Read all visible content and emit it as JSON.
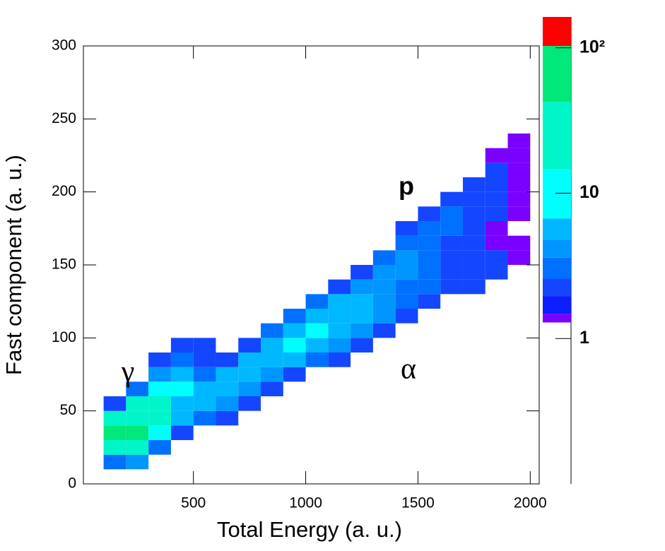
{
  "chart_data": {
    "type": "heatmap",
    "xlabel": "Total Energy (a. u.)",
    "ylabel": "Fast component (a. u.)",
    "annotations": [
      "γ",
      "p",
      "α"
    ],
    "xlim": [
      10,
      2040
    ],
    "ylim": [
      0,
      300
    ],
    "xticks": [
      500,
      1000,
      1500,
      2000
    ],
    "yticks": [
      0,
      50,
      100,
      150,
      200,
      250,
      300
    ],
    "zlim": [
      0.1,
      163
    ],
    "zlog": true,
    "zticks": [
      1,
      10,
      {
        "value": 100,
        "label": "10²"
      }
    ],
    "zlevels": [
      1.29,
      1.48,
      1.96,
      2.58,
      3.6,
      4.78,
      6.7,
      14.6,
      42.4,
      103,
      163
    ],
    "zcolors": [
      "#7a00ff",
      "#0a1eff",
      "#1446ff",
      "#0070ff",
      "#0096ff",
      "#00b8ff",
      "#00ffff",
      "#00f5c8",
      "#00e87a",
      "#ff0000"
    ],
    "xbins": [
      100,
      200,
      300,
      400,
      500,
      600,
      700,
      800,
      900,
      1000,
      1100,
      1200,
      1300,
      1400,
      1500,
      1600,
      1700,
      1800,
      1900,
      2000
    ],
    "ybins": [
      10,
      20,
      30,
      40,
      50,
      60,
      70,
      80,
      90,
      100,
      110,
      120,
      130,
      140,
      150,
      160,
      170,
      180,
      190,
      200,
      210,
      220,
      230,
      240
    ],
    "values": [
      [
        3,
        4,
        null,
        null,
        null,
        null,
        null,
        null,
        null,
        null,
        null,
        null,
        null,
        null,
        null,
        null,
        null,
        null,
        null
      ],
      [
        40,
        20,
        3,
        null,
        null,
        null,
        null,
        null,
        null,
        null,
        null,
        null,
        null,
        null,
        null,
        null,
        null,
        null,
        null
      ],
      [
        60,
        50,
        8,
        2,
        null,
        null,
        null,
        null,
        null,
        null,
        null,
        null,
        null,
        null,
        null,
        null,
        null,
        null,
        null
      ],
      [
        15,
        40,
        20,
        5,
        3,
        2,
        null,
        null,
        null,
        null,
        null,
        null,
        null,
        null,
        null,
        null,
        null,
        null,
        null
      ],
      [
        2,
        15,
        25,
        6,
        5,
        4,
        2,
        null,
        null,
        null,
        null,
        null,
        null,
        null,
        null,
        null,
        null,
        null,
        null
      ],
      [
        null,
        3,
        10,
        8,
        6,
        6,
        4,
        2,
        null,
        null,
        null,
        null,
        null,
        null,
        null,
        null,
        null,
        null,
        null
      ],
      [
        null,
        null,
        4,
        5,
        3,
        5,
        6,
        4,
        2,
        null,
        null,
        null,
        null,
        null,
        null,
        null,
        null,
        null,
        null
      ],
      [
        null,
        null,
        2,
        3,
        2,
        2,
        5,
        6,
        5,
        3,
        2,
        null,
        null,
        null,
        null,
        null,
        null,
        null,
        null
      ],
      [
        null,
        null,
        null,
        2,
        2,
        null,
        2,
        5,
        7,
        6,
        4,
        2,
        null,
        null,
        null,
        null,
        null,
        null,
        null
      ],
      [
        null,
        null,
        null,
        null,
        null,
        null,
        null,
        3,
        6,
        7,
        5,
        4,
        2,
        null,
        null,
        null,
        null,
        null,
        null
      ],
      [
        null,
        null,
        null,
        null,
        null,
        null,
        null,
        null,
        3,
        6,
        6,
        5,
        4,
        2,
        null,
        null,
        null,
        null,
        null
      ],
      [
        null,
        null,
        null,
        null,
        null,
        null,
        null,
        null,
        null,
        3,
        5,
        5,
        4,
        3,
        2,
        null,
        null,
        null,
        null
      ],
      [
        null,
        null,
        null,
        null,
        null,
        null,
        null,
        null,
        null,
        null,
        2,
        4,
        4,
        3,
        3,
        2,
        2,
        null,
        null
      ],
      [
        null,
        null,
        null,
        null,
        null,
        null,
        null,
        null,
        null,
        null,
        null,
        2,
        4,
        4,
        3,
        2,
        2,
        2,
        null
      ],
      [
        null,
        null,
        null,
        null,
        null,
        null,
        null,
        null,
        null,
        null,
        null,
        null,
        3,
        4,
        3,
        2,
        2,
        2,
        1
      ],
      [
        null,
        null,
        null,
        null,
        null,
        null,
        null,
        null,
        null,
        null,
        null,
        null,
        null,
        3,
        3,
        2,
        2,
        1,
        1
      ],
      [
        null,
        null,
        null,
        null,
        null,
        null,
        null,
        null,
        null,
        null,
        null,
        null,
        null,
        2,
        3,
        3,
        2,
        1,
        null
      ],
      [
        null,
        null,
        null,
        null,
        null,
        null,
        null,
        null,
        null,
        null,
        null,
        null,
        null,
        null,
        2,
        3,
        2,
        2,
        1
      ],
      [
        null,
        null,
        null,
        null,
        null,
        null,
        null,
        null,
        null,
        null,
        null,
        null,
        null,
        null,
        null,
        2,
        2,
        2,
        1
      ],
      [
        null,
        null,
        null,
        null,
        null,
        null,
        null,
        null,
        null,
        null,
        null,
        null,
        null,
        null,
        null,
        null,
        2,
        2,
        1
      ],
      [
        null,
        null,
        null,
        null,
        null,
        null,
        null,
        null,
        null,
        null,
        null,
        null,
        null,
        null,
        null,
        null,
        null,
        2,
        1
      ],
      [
        null,
        null,
        null,
        null,
        null,
        null,
        null,
        null,
        null,
        null,
        null,
        null,
        null,
        null,
        null,
        null,
        null,
        1,
        1
      ],
      [
        null,
        null,
        null,
        null,
        null,
        null,
        null,
        null,
        null,
        null,
        null,
        null,
        null,
        null,
        null,
        null,
        null,
        null,
        1
      ]
    ]
  }
}
